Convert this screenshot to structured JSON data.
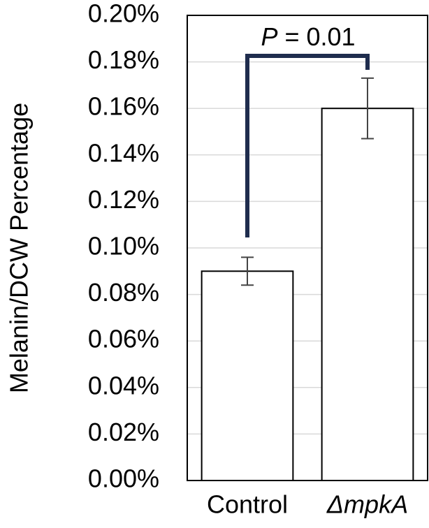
{
  "chart_data": {
    "type": "bar",
    "y_label": "Melanin/DCW Percentage",
    "categories": [
      "Control",
      "ΔmpkA"
    ],
    "values": [
      0.09,
      0.16
    ],
    "errors": [
      0.006,
      0.013
    ],
    "color": "#ffffff",
    "ylim": [
      0,
      0.2
    ],
    "yticks": [
      {
        "value": 0,
        "label": "0.00%"
      },
      {
        "value": 0.02,
        "label": "0.02%"
      },
      {
        "value": 0.04,
        "label": "0.04%"
      },
      {
        "value": 0.06,
        "label": "0.06%"
      },
      {
        "value": 0.08,
        "label": "0.08%"
      },
      {
        "value": 0.1,
        "label": "0.10%"
      },
      {
        "value": 0.12,
        "label": "0.12%"
      },
      {
        "value": 0.14,
        "label": "0.14%"
      },
      {
        "value": 0.16,
        "label": "0.16%"
      },
      {
        "value": 0.18,
        "label": "0.18%"
      },
      {
        "value": 0.2,
        "label": "0.20%"
      }
    ],
    "grid": true,
    "annotation": {
      "symbol": "P",
      "text": "= 0.01"
    }
  }
}
